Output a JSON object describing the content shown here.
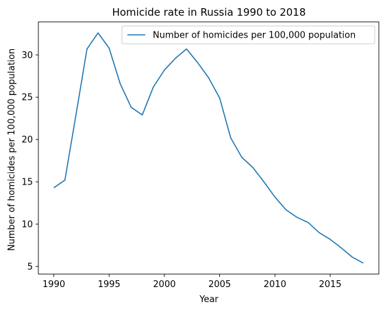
{
  "chart_data": {
    "type": "line",
    "title": "Homicide rate in Russia 1990 to 2018",
    "xlabel": "Year",
    "ylabel": "Number of homicides per 100,000 population",
    "xlim": [
      1988.6,
      2019.4
    ],
    "ylim": [
      4.1,
      33.9
    ],
    "xticks": [
      1990,
      1995,
      2000,
      2005,
      2010,
      2015
    ],
    "yticks": [
      5,
      10,
      15,
      20,
      25,
      30
    ],
    "grid": false,
    "legend_position": "top-right",
    "series": [
      {
        "name": "Number of homicides per 100,000 population",
        "color": "#1f77b4",
        "x": [
          1990,
          1991,
          1992,
          1993,
          1994,
          1995,
          1996,
          1997,
          1998,
          1999,
          2000,
          2001,
          2002,
          2003,
          2004,
          2005,
          2006,
          2007,
          2008,
          2009,
          2010,
          2011,
          2012,
          2013,
          2014,
          2015,
          2016,
          2017,
          2018
        ],
        "y": [
          14.3,
          15.2,
          22.9,
          30.7,
          32.6,
          30.8,
          26.6,
          23.8,
          22.9,
          26.2,
          28.2,
          29.6,
          30.7,
          29.1,
          27.3,
          24.9,
          20.2,
          17.9,
          16.7,
          15.0,
          13.2,
          11.7,
          10.8,
          10.2,
          9.0,
          8.2,
          7.2,
          6.1,
          5.4
        ]
      }
    ]
  }
}
